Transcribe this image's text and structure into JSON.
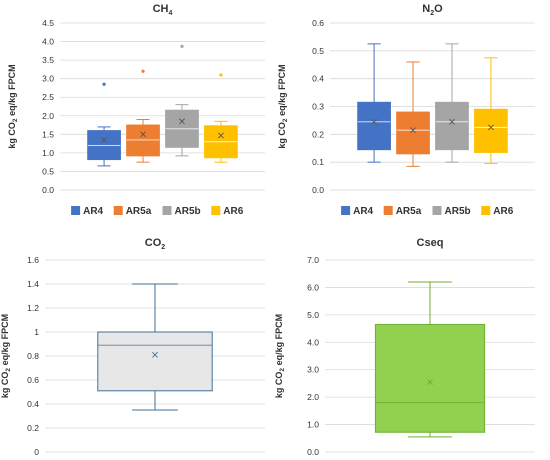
{
  "chart_data": [
    {
      "type": "box",
      "title_main": "CH",
      "title_sub": "4",
      "ylabel": {
        "pre": "kg CO",
        "sub": "2",
        "post": " eq/kg FPCM"
      },
      "ylim": [
        0,
        4.5
      ],
      "ytick_step": 0.5,
      "ytick_decimals": 1,
      "grid": true,
      "legend": "bottom",
      "series": [
        {
          "name": "AR4",
          "color": "#4472C4",
          "min": 0.65,
          "q1": 0.82,
          "median": 1.2,
          "q3": 1.6,
          "max": 1.7,
          "mean": 1.35,
          "outliers": [
            2.85
          ]
        },
        {
          "name": "AR5a",
          "color": "#ED7D31",
          "min": 0.75,
          "q1": 0.92,
          "median": 1.35,
          "q3": 1.75,
          "max": 1.9,
          "mean": 1.5,
          "outliers": [
            3.2
          ]
        },
        {
          "name": "AR5b",
          "color": "#A5A5A5",
          "min": 0.92,
          "q1": 1.15,
          "median": 1.65,
          "q3": 2.15,
          "max": 2.3,
          "mean": 1.85,
          "outliers": [
            3.87
          ]
        },
        {
          "name": "AR6",
          "color": "#FFC000",
          "min": 0.75,
          "q1": 0.87,
          "median": 1.3,
          "q3": 1.73,
          "max": 1.85,
          "mean": 1.47,
          "outliers": [
            3.1
          ]
        }
      ]
    },
    {
      "type": "box",
      "title_main": "N",
      "title_sub": "2",
      "title_post": "O",
      "ylabel": {
        "pre": "kg CO",
        "sub": "2",
        "post": " eq/kg FPCM"
      },
      "ylim": [
        0,
        0.6
      ],
      "ytick_step": 0.1,
      "ytick_decimals": 1,
      "grid": true,
      "legend": "bottom",
      "series": [
        {
          "name": "AR4",
          "color": "#4472C4",
          "min": 0.1,
          "q1": 0.145,
          "median": 0.245,
          "q3": 0.315,
          "max": 0.525,
          "mean": 0.245,
          "outliers": []
        },
        {
          "name": "AR5a",
          "color": "#ED7D31",
          "min": 0.085,
          "q1": 0.13,
          "median": 0.215,
          "q3": 0.28,
          "max": 0.46,
          "mean": 0.215,
          "outliers": []
        },
        {
          "name": "AR5b",
          "color": "#A5A5A5",
          "min": 0.1,
          "q1": 0.145,
          "median": 0.245,
          "q3": 0.315,
          "max": 0.525,
          "mean": 0.245,
          "outliers": []
        },
        {
          "name": "AR6",
          "color": "#FFC000",
          "min": 0.095,
          "q1": 0.135,
          "median": 0.225,
          "q3": 0.29,
          "max": 0.475,
          "mean": 0.225,
          "outliers": []
        }
      ]
    },
    {
      "type": "box",
      "title_main": "CO",
      "title_sub": "2",
      "ylabel": {
        "pre": "kg CO",
        "sub": "2",
        "post": " eq/kg FPCM"
      },
      "ylim": [
        0,
        1.6
      ],
      "ytick_step": 0.2,
      "ytick_decimals": -1,
      "grid": true,
      "legend": "none",
      "series": [
        {
          "color": "#E7E7E7",
          "edge": "#41719C",
          "min": 0.35,
          "q1": 0.51,
          "median": 0.89,
          "q3": 1.0,
          "max": 1.4,
          "mean": 0.81,
          "outliers": []
        }
      ]
    },
    {
      "type": "box",
      "title_main": "Cseq",
      "ylabel": {
        "pre": "kg CO",
        "sub": "2",
        "post": " eq/kg FPCM"
      },
      "ylim": [
        0,
        7.0
      ],
      "ytick_step": 1.0,
      "ytick_decimals": 1,
      "grid": true,
      "legend": "none",
      "series": [
        {
          "color": "#92D050",
          "edge": "#6DAF2E",
          "min": 0.55,
          "q1": 0.72,
          "median": 1.8,
          "q3": 4.65,
          "max": 6.2,
          "mean": 2.55,
          "outliers": []
        }
      ]
    }
  ]
}
